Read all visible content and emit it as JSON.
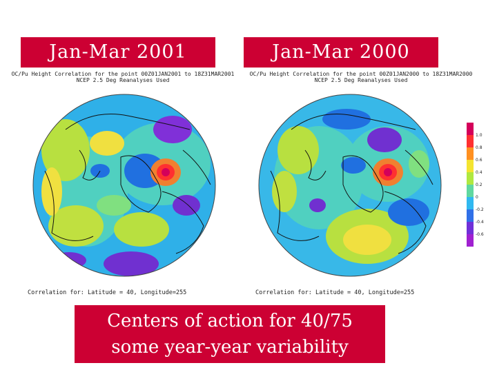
{
  "titles": {
    "left": "Jan-Mar 2001",
    "right": "Jan-Mar 2000"
  },
  "maps": {
    "left": {
      "header_line1": "OC/Pu Height Correlation for the point 00Z01JAN2001 to 18Z31MAR2001",
      "header_line2": "NCEP 2.5 Deg Reanalyses Used",
      "footer": "Correlation for: Latitude = 40, Longitude=255"
    },
    "right": {
      "header_line1": "OC/Pu Height Correlation for the point 00Z01JAN2000 to 18Z31MAR2000",
      "header_line2": "NCEP 2.5 Deg Reanalyses Used",
      "footer": "Correlation for: Latitude = 40, Longitude=255"
    }
  },
  "colorbar": {
    "labels": [
      "1.0",
      "0.8",
      "0.6",
      "0.4",
      "0.2",
      "0",
      "-0.2",
      "-0.4",
      "-0.6"
    ],
    "colors": [
      "#d4005a",
      "#ff3030",
      "#ff9020",
      "#f4e430",
      "#b0e840",
      "#60d8a0",
      "#30b8f0",
      "#3070e8",
      "#7030d8",
      "#a020d0"
    ]
  },
  "caption": {
    "line1": "Centers of action for 40/75",
    "line2": "some year-year variability"
  }
}
